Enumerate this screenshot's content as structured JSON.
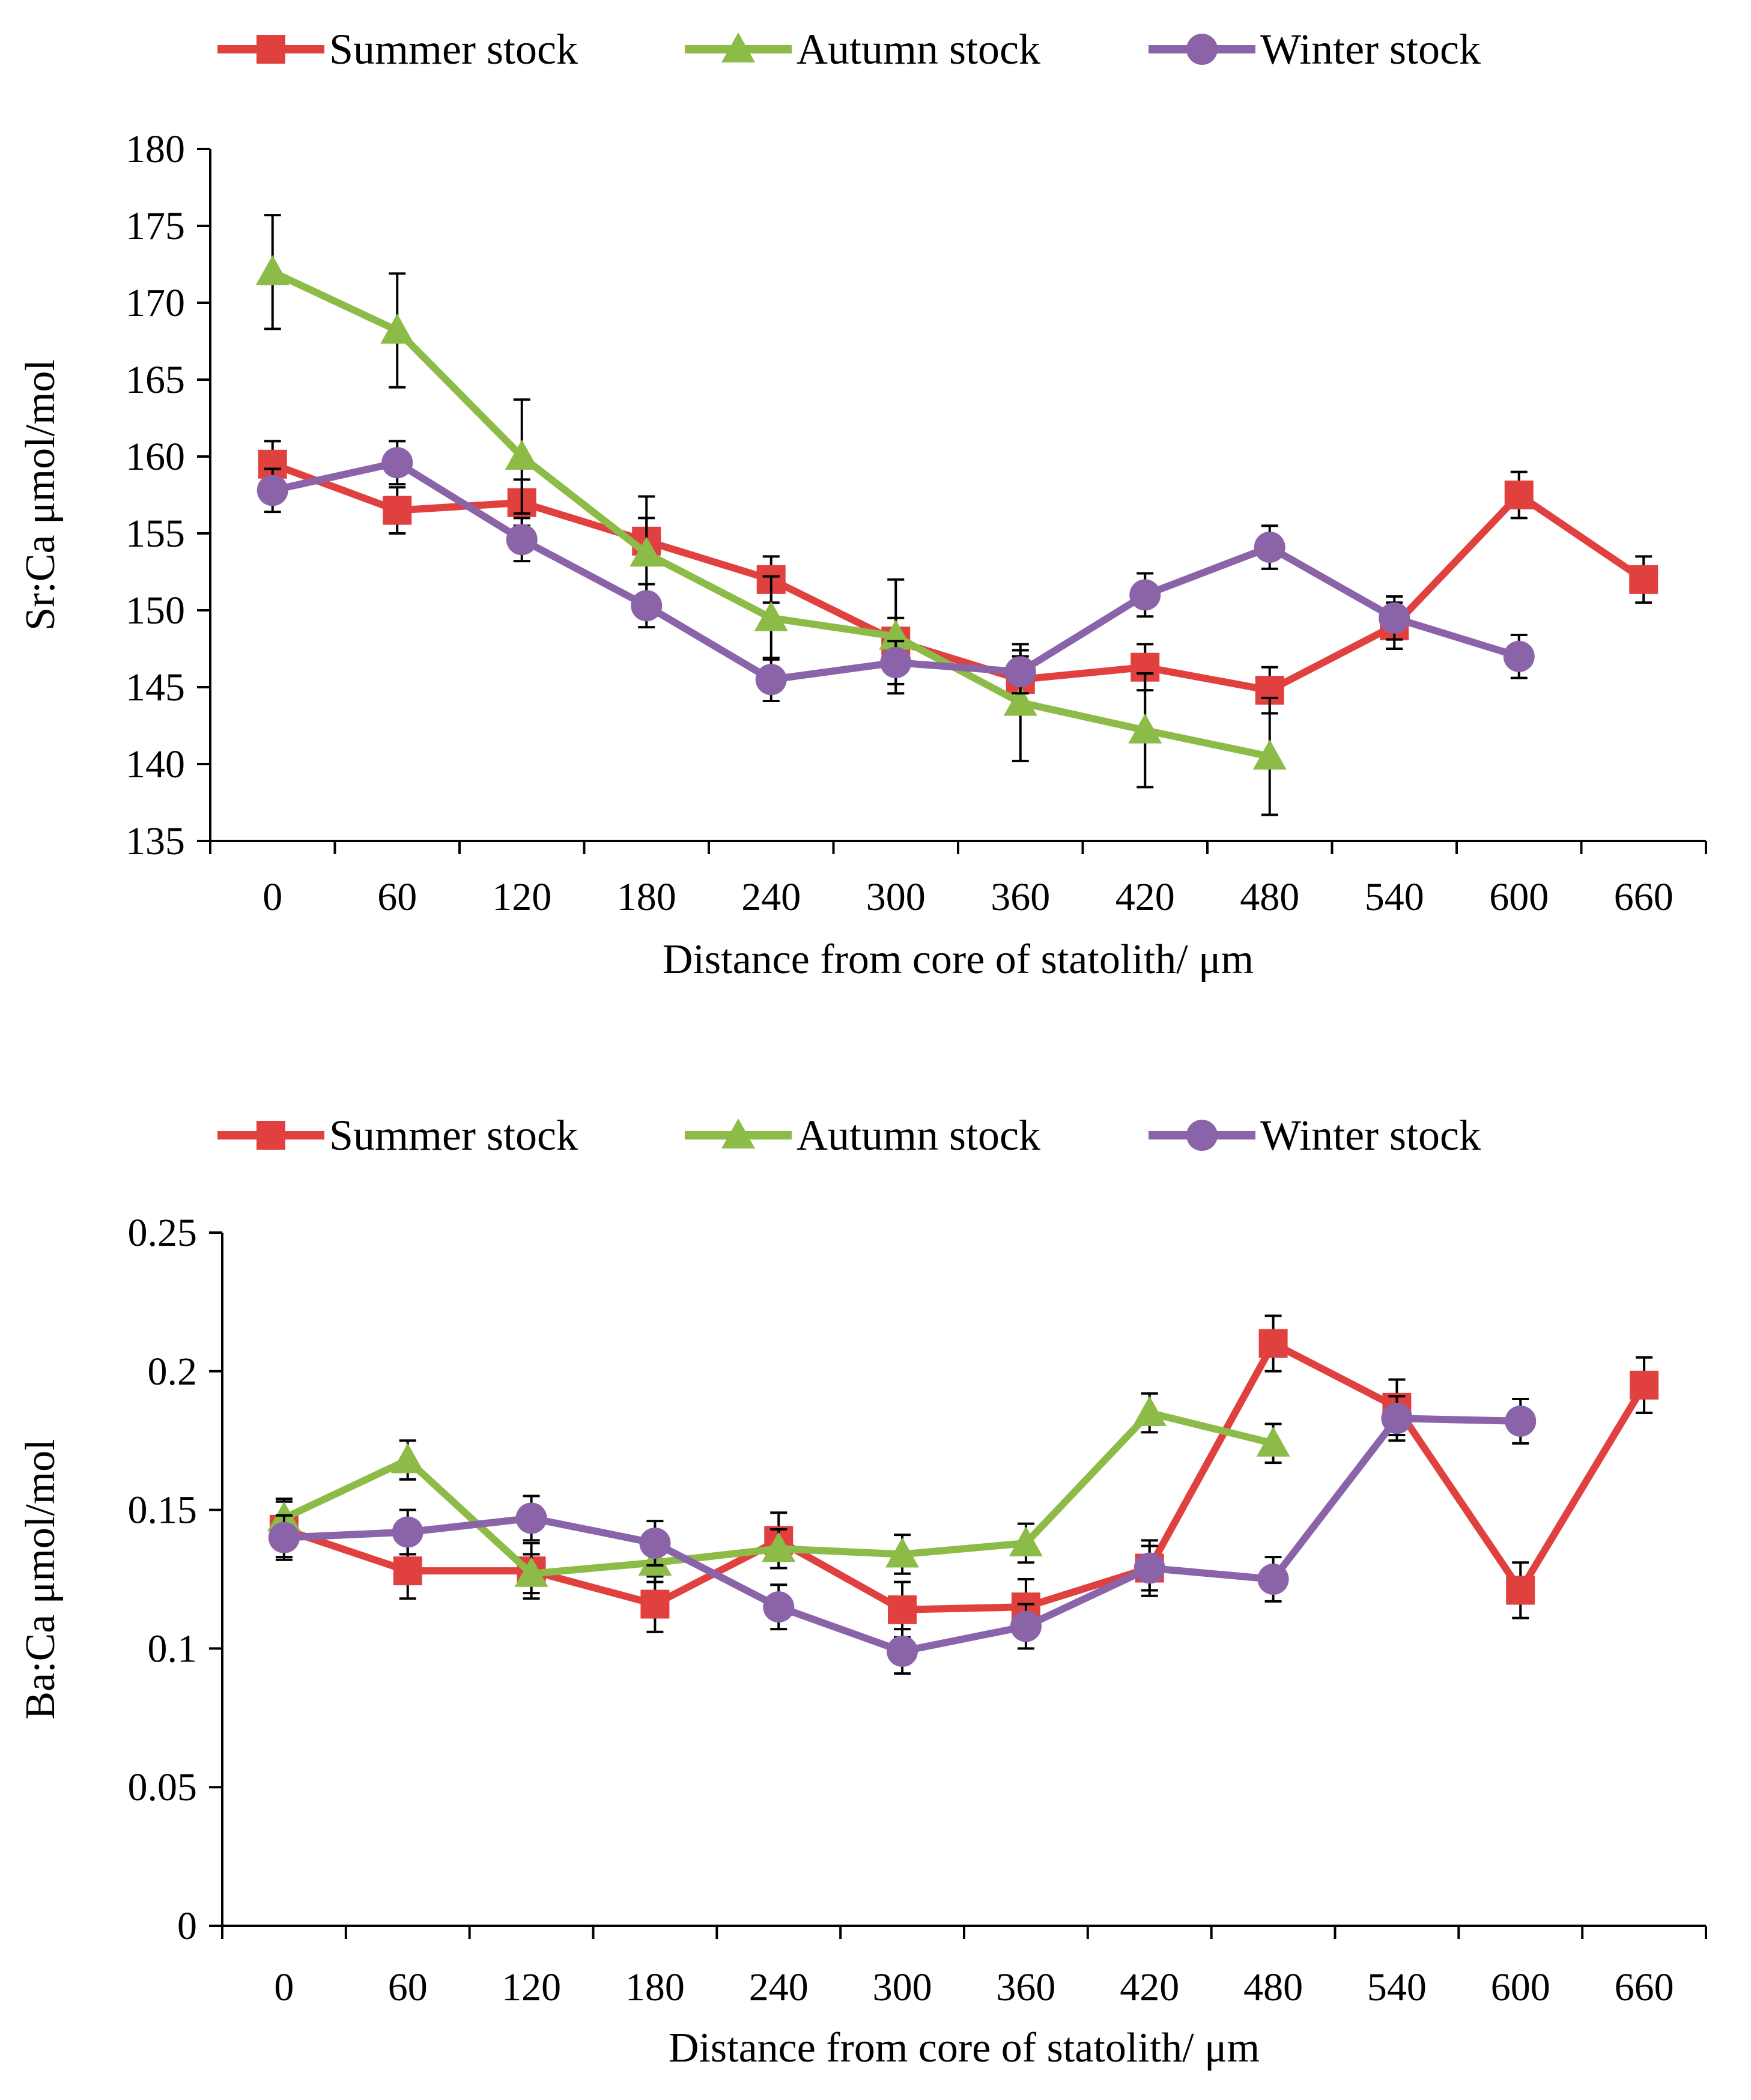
{
  "chart_data": [
    {
      "type": "line",
      "id": "srca",
      "ylabel": "Sr:Ca μmol/mol",
      "xlabel": "Distance from core of statolith/ μm",
      "categories": [
        "0",
        "60",
        "120",
        "180",
        "240",
        "300",
        "360",
        "420",
        "480",
        "540",
        "600",
        "660"
      ],
      "ylim": [
        135,
        180
      ],
      "yticks": [
        "135",
        "140",
        "145",
        "150",
        "155",
        "160",
        "165",
        "170",
        "175",
        "180"
      ],
      "legend_position": "top",
      "series": [
        {
          "name": "Summer stock",
          "color": "#E0413F",
          "marker": "square",
          "values": [
            159.5,
            156.5,
            157.0,
            154.5,
            152.0,
            148.0,
            145.5,
            146.3,
            144.8,
            149.0,
            157.5,
            152.0
          ],
          "errors": [
            1.5,
            1.5,
            1.5,
            1.5,
            1.5,
            1.5,
            1.5,
            1.5,
            1.5,
            1.5,
            1.5,
            1.5
          ]
        },
        {
          "name": "Autumn stock",
          "color": "#8DBB48",
          "marker": "triangle",
          "values": [
            172.0,
            168.2,
            160.0,
            153.7,
            149.5,
            148.3,
            144.0,
            142.2,
            140.5,
            null,
            null,
            null
          ],
          "errors": [
            3.7,
            3.7,
            3.7,
            3.7,
            2.7,
            3.7,
            3.8,
            3.7,
            3.8,
            null,
            null,
            null
          ]
        },
        {
          "name": "Winter stock",
          "color": "#8A63A8",
          "marker": "circle",
          "values": [
            157.8,
            159.6,
            154.6,
            150.3,
            145.5,
            146.6,
            146.0,
            151.0,
            154.1,
            149.5,
            147.0,
            null
          ],
          "errors": [
            1.4,
            1.4,
            1.4,
            1.4,
            1.4,
            1.4,
            1.4,
            1.4,
            1.4,
            1.4,
            1.4,
            null
          ]
        }
      ]
    },
    {
      "type": "line",
      "id": "baca",
      "ylabel": "Ba:Ca μmol/mol",
      "xlabel": "Distance from core of statolith/ μm",
      "categories": [
        "0",
        "60",
        "120",
        "180",
        "240",
        "300",
        "360",
        "420",
        "480",
        "540",
        "600",
        "660"
      ],
      "ylim": [
        0,
        0.25
      ],
      "yticks": [
        "0",
        "0.05",
        "0.1",
        "0.15",
        "0.2",
        "0.25"
      ],
      "legend_position": "top",
      "series": [
        {
          "name": "Summer stock",
          "color": "#E0413F",
          "marker": "square",
          "values": [
            0.143,
            0.128,
            0.128,
            0.116,
            0.139,
            0.114,
            0.115,
            0.129,
            0.21,
            0.187,
            0.121,
            0.195
          ],
          "errors": [
            0.01,
            0.01,
            0.01,
            0.01,
            0.01,
            0.01,
            0.01,
            0.01,
            0.01,
            0.01,
            0.01,
            0.01
          ]
        },
        {
          "name": "Autumn stock",
          "color": "#8DBB48",
          "marker": "triangle",
          "values": [
            0.147,
            0.168,
            0.127,
            0.131,
            0.136,
            0.134,
            0.138,
            0.185,
            0.174,
            null,
            null,
            null
          ],
          "errors": [
            0.007,
            0.007,
            0.007,
            0.007,
            0.007,
            0.007,
            0.007,
            0.007,
            0.007,
            null,
            null,
            null
          ]
        },
        {
          "name": "Winter stock",
          "color": "#8A63A8",
          "marker": "circle",
          "values": [
            0.14,
            0.142,
            0.147,
            0.138,
            0.115,
            0.099,
            0.108,
            0.129,
            0.125,
            0.183,
            0.182,
            null
          ],
          "errors": [
            0.008,
            0.008,
            0.008,
            0.008,
            0.008,
            0.008,
            0.008,
            0.008,
            0.008,
            0.008,
            0.008,
            null
          ]
        }
      ]
    }
  ]
}
